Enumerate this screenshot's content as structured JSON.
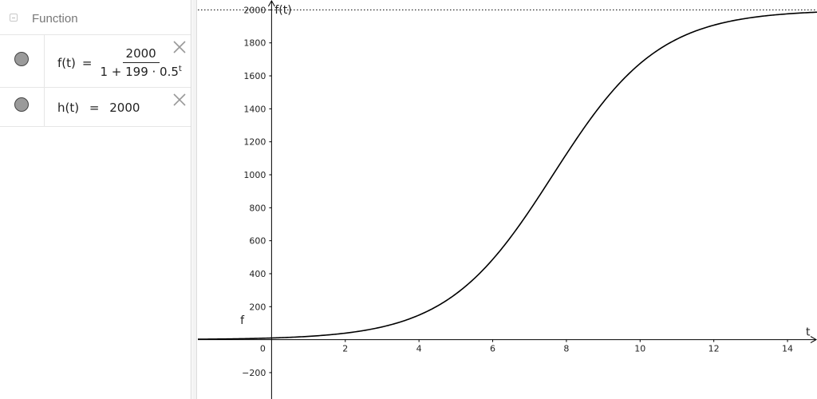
{
  "algebra": {
    "group_label": "Function",
    "rows": [
      {
        "name": "f(t)",
        "equals": "=",
        "numerator": "2000",
        "denominator_base": "1 + 199 · 0.5",
        "denominator_exp": "t"
      },
      {
        "name": "h(t)",
        "equals": "=",
        "value": "2000"
      }
    ]
  },
  "graph": {
    "x_axis_label": "t",
    "y_axis_label": "f(t)",
    "curve_label": "f",
    "x_range": [
      -2,
      14.8
    ],
    "y_range": [
      -360,
      2060
    ],
    "x_ticks": [
      0,
      2,
      4,
      6,
      8,
      10,
      12,
      14
    ],
    "y_ticks": [
      -200,
      200,
      400,
      600,
      800,
      1000,
      1200,
      1400,
      1600,
      1800,
      2000
    ],
    "x_tick_labels": [
      "0",
      "2",
      "4",
      "6",
      "8",
      "10",
      "12",
      "14"
    ],
    "y_tick_labels": [
      "−200",
      "200",
      "400",
      "600",
      "800",
      "1000",
      "1200",
      "1400",
      "1600",
      "1800",
      "2000"
    ],
    "function": {
      "capacity": 2000,
      "a": 199,
      "base": 0.5
    },
    "asymptote": 2000,
    "curve_color": "#000000",
    "asymptote_color": "#000000"
  }
}
